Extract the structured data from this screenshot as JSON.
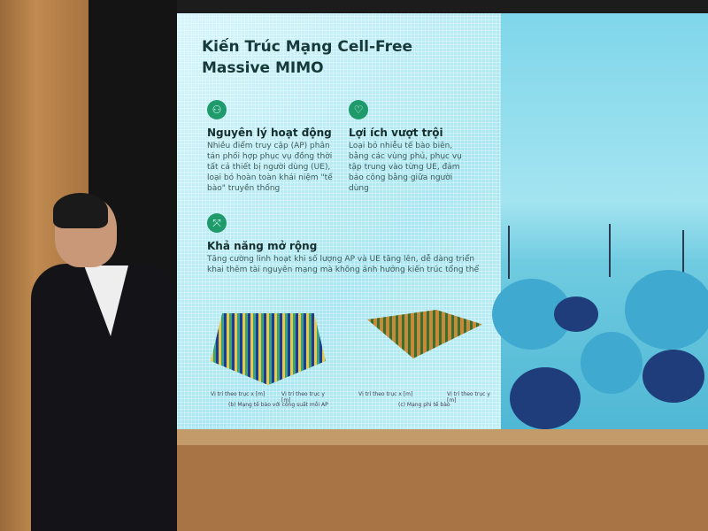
{
  "slide": {
    "title": "Kiến Trúc Mạng Cell-Free Massive MIMO",
    "cards": [
      {
        "icon": "network-icon",
        "heading": "Nguyên lý hoạt động",
        "text": "Nhiều điểm truy cập (AP) phân tán phối hợp phục vụ đồng thời tất cả thiết bị người dùng (UE), loại bỏ hoàn toàn khái niệm \"tế bào\" truyền thống"
      },
      {
        "icon": "shield-icon",
        "heading": "Lợi ích vượt trội",
        "text": "Loại bỏ nhiễu tế bào biên, bằng các vùng phủ, phục vụ tập trung vào từng UE, đảm bảo công bằng giữa người dùng"
      },
      {
        "icon": "expand-icon",
        "heading": "Khả năng mở rộng",
        "text": "Tăng cường linh hoạt khi số lượng AP và UE tăng lên, dễ dàng triển khai thêm tài nguyên mạng mà không ảnh hưởng kiến trúc tổng thể"
      }
    ],
    "plots": [
      {
        "x_label": "Vị trí theo trục x [m]",
        "y_label": "Vị trí theo trục y [m]",
        "caption": "(b) Mạng tế bào với công suất mỗi AP"
      },
      {
        "x_label": "Vị trí theo trục x [m]",
        "y_label": "Vị trí theo trục y [m]",
        "caption": "(c) Mạng phi tế bào"
      }
    ]
  }
}
